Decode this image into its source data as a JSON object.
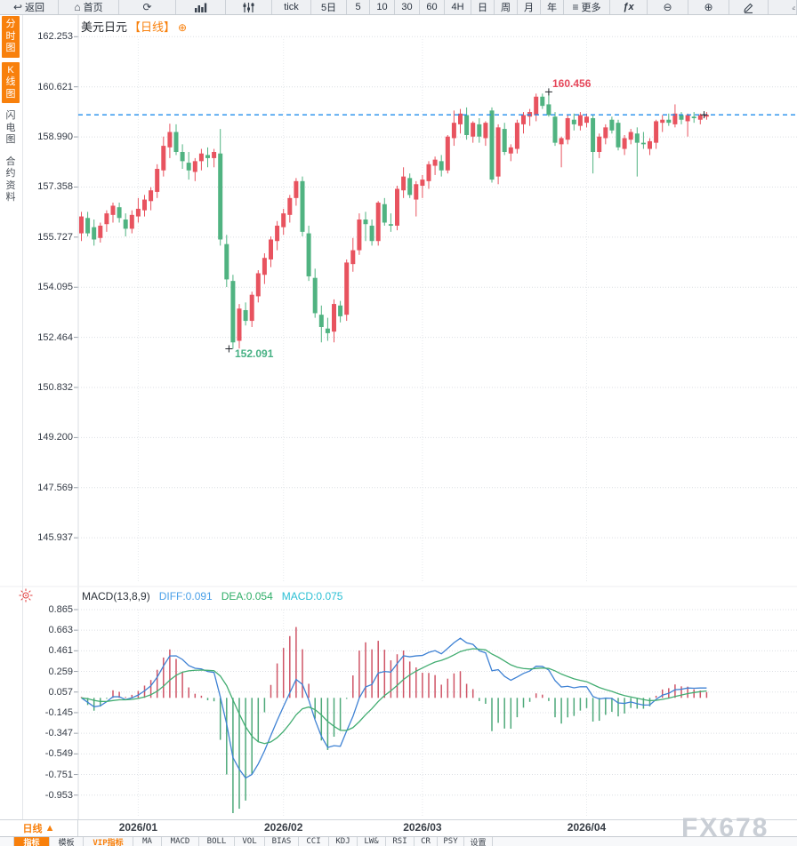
{
  "toolbar": {
    "items": [
      {
        "name": "back-button",
        "icon": "↩",
        "label": "返回"
      },
      {
        "name": "home-button",
        "icon": "⌂",
        "label": "首页"
      },
      {
        "name": "refresh-button",
        "icon": "⟳",
        "label": ""
      },
      {
        "name": "bar-chart-button",
        "svg": "bars",
        "label": ""
      },
      {
        "name": "kline-style-button",
        "svg": "sliders",
        "label": ""
      },
      {
        "name": "interval-tick-button",
        "label": "tick"
      },
      {
        "name": "interval-5d-button",
        "label": "5日"
      },
      {
        "name": "interval-5-button",
        "label": "5"
      },
      {
        "name": "interval-10-button",
        "label": "10"
      },
      {
        "name": "interval-30-button",
        "label": "30"
      },
      {
        "name": "interval-60-button",
        "label": "60"
      },
      {
        "name": "interval-4h-button",
        "label": "4H"
      },
      {
        "name": "interval-day-button",
        "label": "日"
      },
      {
        "name": "interval-week-button",
        "label": "周"
      },
      {
        "name": "interval-month-button",
        "label": "月"
      },
      {
        "name": "interval-year-button",
        "label": "年"
      },
      {
        "name": "more-button",
        "icon": "≡",
        "label": "更多"
      },
      {
        "name": "indicator-fx-button",
        "label": "ƒx"
      },
      {
        "name": "zoom-out-button",
        "icon": "⊖",
        "label": ""
      },
      {
        "name": "zoom-in-button",
        "icon": "⊕",
        "label": ""
      },
      {
        "name": "draw-button",
        "svg": "pen",
        "label": ""
      }
    ]
  },
  "sidebar": {
    "tabs": [
      {
        "name": "tab-time-chart",
        "label": "分时图",
        "active": true
      },
      {
        "name": "tab-kline-chart",
        "label": "K线图",
        "active": true
      },
      {
        "name": "tab-flash-chart",
        "label": "闪电图",
        "active": false
      },
      {
        "name": "tab-contract-info",
        "label": "合约资料",
        "active": false
      }
    ]
  },
  "chart": {
    "title": "美元日元",
    "timeframe": "【日线】",
    "add_icon": "⊕"
  },
  "macd_header": {
    "title": "MACD(13,8,9)",
    "diff": "DIFF:0.091",
    "dea": "DEA:0.054",
    "macd": "MACD:0.075"
  },
  "bottom": {
    "period_label": "日线",
    "period_arrow": "▲",
    "tabs": [
      {
        "name": "tab-indicators",
        "label": "指标",
        "selected": true
      },
      {
        "name": "tab-templates",
        "label": "模板"
      },
      {
        "name": "tab-vip-indicators",
        "label": "VIP指标",
        "vip": true
      },
      {
        "name": "tab-ma",
        "label": "MA"
      },
      {
        "name": "tab-macd",
        "label": "MACD"
      },
      {
        "name": "tab-boll",
        "label": "BOLL"
      },
      {
        "name": "tab-vol",
        "label": "VOL"
      },
      {
        "name": "tab-bias",
        "label": "BIAS"
      },
      {
        "name": "tab-cci",
        "label": "CCI"
      },
      {
        "name": "tab-kdj",
        "label": "KDJ"
      },
      {
        "name": "tab-lwr",
        "label": "LW&"
      },
      {
        "name": "tab-rsi",
        "label": "RSI"
      },
      {
        "name": "tab-cr",
        "label": "CR"
      },
      {
        "name": "tab-psy",
        "label": "PSY"
      },
      {
        "name": "tab-settings",
        "label": "设置"
      }
    ]
  },
  "watermark": "FX678",
  "colors": {
    "accent": "#f8800c",
    "candle_up": "#e8535f",
    "candle_down": "#50b381",
    "hist_up": "#cf5466",
    "hist_down": "#4ea97a",
    "diff_line": "#3f82d4",
    "dea_line": "#43ad72",
    "price_line": "#1f8ceb",
    "diff_label": "#4aa0e8",
    "dea_label": "#2fae68",
    "macd_label": "#2bbfd4",
    "high_anno": "#e5475a",
    "low_anno": "#47b184",
    "grid": "#dcdfe4"
  },
  "chart_data": {
    "type": "candlestick",
    "symbol": "美元日元",
    "period": "日线",
    "price_ticks": [
      162.253,
      160.621,
      158.99,
      157.358,
      155.727,
      154.095,
      152.464,
      150.832,
      149.2,
      147.569,
      145.937
    ],
    "x_labels": [
      "2026/01",
      "2026/02",
      "2026/03",
      "2026/04"
    ],
    "month_start_indices": [
      9,
      32,
      54,
      80
    ],
    "current_price": 159.71,
    "high_marker": {
      "index": 74,
      "price": 160.456,
      "label": "160.456"
    },
    "low_marker": {
      "index": 24,
      "price": 152.091,
      "label": "152.091"
    },
    "macd": {
      "params": [
        13,
        8,
        9
      ],
      "diff": 0.091,
      "dea": 0.054,
      "macd": 0.075,
      "ticks": [
        0.865,
        0.663,
        0.461,
        0.259,
        0.057,
        -0.145,
        -0.347,
        -0.549,
        -0.751,
        -0.953
      ]
    },
    "candles": [
      [
        155.85,
        156.55,
        155.6,
        156.4
      ],
      [
        156.35,
        156.55,
        155.75,
        155.85
      ],
      [
        156.05,
        156.3,
        155.45,
        155.65
      ],
      [
        155.7,
        156.2,
        155.55,
        156.1
      ],
      [
        156.15,
        156.6,
        155.9,
        156.5
      ],
      [
        156.45,
        156.85,
        156.2,
        156.75
      ],
      [
        156.7,
        156.85,
        156.2,
        156.35
      ],
      [
        156.3,
        156.5,
        155.75,
        156.0
      ],
      [
        156.0,
        156.6,
        155.85,
        156.45
      ],
      [
        156.4,
        157.0,
        156.2,
        156.65
      ],
      [
        156.6,
        157.1,
        156.4,
        156.95
      ],
      [
        156.9,
        157.35,
        156.6,
        157.25
      ],
      [
        157.2,
        158.1,
        157.0,
        157.95
      ],
      [
        157.9,
        159.0,
        157.7,
        158.7
      ],
      [
        158.65,
        159.42,
        158.3,
        159.15
      ],
      [
        159.15,
        159.4,
        158.4,
        158.5
      ],
      [
        158.5,
        158.75,
        157.95,
        158.2
      ],
      [
        158.15,
        158.5,
        157.6,
        157.9
      ],
      [
        157.85,
        158.3,
        157.55,
        158.2
      ],
      [
        158.2,
        158.6,
        157.9,
        158.45
      ],
      [
        158.4,
        158.65,
        158.0,
        158.3
      ],
      [
        158.3,
        158.6,
        158.0,
        158.5
      ],
      [
        158.45,
        159.25,
        155.45,
        155.65
      ],
      [
        155.5,
        155.8,
        154.1,
        154.35
      ],
      [
        154.3,
        154.5,
        152.09,
        152.3
      ],
      [
        152.35,
        153.55,
        152.1,
        153.4
      ],
      [
        153.35,
        153.6,
        152.85,
        153.0
      ],
      [
        153.0,
        153.95,
        152.8,
        153.85
      ],
      [
        153.8,
        154.65,
        153.6,
        154.55
      ],
      [
        154.5,
        155.2,
        154.2,
        155.05
      ],
      [
        155.0,
        155.75,
        154.75,
        155.65
      ],
      [
        155.6,
        156.25,
        155.3,
        156.1
      ],
      [
        156.05,
        156.65,
        155.8,
        156.5
      ],
      [
        156.45,
        157.1,
        156.2,
        157.0
      ],
      [
        157.0,
        157.65,
        156.75,
        157.55
      ],
      [
        157.55,
        157.7,
        155.75,
        155.9
      ],
      [
        155.85,
        156.1,
        154.3,
        154.45
      ],
      [
        154.4,
        154.7,
        153.1,
        153.25
      ],
      [
        153.2,
        153.5,
        152.3,
        152.8
      ],
      [
        152.75,
        153.1,
        152.35,
        152.6
      ],
      [
        152.65,
        153.7,
        152.3,
        153.55
      ],
      [
        153.5,
        153.65,
        152.95,
        153.15
      ],
      [
        153.2,
        155.0,
        153.0,
        154.9
      ],
      [
        154.85,
        155.7,
        154.6,
        155.3
      ],
      [
        155.3,
        156.5,
        155.15,
        156.3
      ],
      [
        156.3,
        156.55,
        155.6,
        156.15
      ],
      [
        156.1,
        156.3,
        155.45,
        155.6
      ],
      [
        155.6,
        156.9,
        155.45,
        156.85
      ],
      [
        156.8,
        157.0,
        156.1,
        156.2
      ],
      [
        156.15,
        156.5,
        155.9,
        156.1
      ],
      [
        156.1,
        157.4,
        155.95,
        157.3
      ],
      [
        157.25,
        158.0,
        157.0,
        157.7
      ],
      [
        157.65,
        157.8,
        157.0,
        157.1
      ],
      [
        156.95,
        157.55,
        156.4,
        157.45
      ],
      [
        157.4,
        157.75,
        157.0,
        157.6
      ],
      [
        157.55,
        158.2,
        157.3,
        158.1
      ],
      [
        158.05,
        158.35,
        157.75,
        158.25
      ],
      [
        158.2,
        158.4,
        157.7,
        157.9
      ],
      [
        157.9,
        159.05,
        157.8,
        159.0
      ],
      [
        158.95,
        159.85,
        158.7,
        159.45
      ],
      [
        159.4,
        159.9,
        159.1,
        159.75
      ],
      [
        159.7,
        159.95,
        158.9,
        159.05
      ],
      [
        159.0,
        159.5,
        158.8,
        159.45
      ],
      [
        159.4,
        159.6,
        158.8,
        159.0
      ],
      [
        158.95,
        159.5,
        158.7,
        159.45
      ],
      [
        159.85,
        159.95,
        157.5,
        157.6
      ],
      [
        157.7,
        159.4,
        157.45,
        159.3
      ],
      [
        159.25,
        159.45,
        158.4,
        158.5
      ],
      [
        158.45,
        158.75,
        158.2,
        158.65
      ],
      [
        158.6,
        159.55,
        158.45,
        159.45
      ],
      [
        159.4,
        159.8,
        159.1,
        159.7
      ],
      [
        159.65,
        159.9,
        159.35,
        159.8
      ],
      [
        159.7,
        160.4,
        159.5,
        160.3
      ],
      [
        160.3,
        160.4,
        159.9,
        160.0
      ],
      [
        160.05,
        160.456,
        159.65,
        159.7
      ],
      [
        159.65,
        159.8,
        158.7,
        158.8
      ],
      [
        158.75,
        159.0,
        158.0,
        158.95
      ],
      [
        158.9,
        159.7,
        158.75,
        159.6
      ],
      [
        159.55,
        159.75,
        159.2,
        159.4
      ],
      [
        159.35,
        159.8,
        159.2,
        159.7
      ],
      [
        159.45,
        159.75,
        159.3,
        159.65
      ],
      [
        159.6,
        159.7,
        157.8,
        158.5
      ],
      [
        158.5,
        159.1,
        158.3,
        159.0
      ],
      [
        158.95,
        159.4,
        158.75,
        159.3
      ],
      [
        159.55,
        159.65,
        159.1,
        159.2
      ],
      [
        159.45,
        159.55,
        158.55,
        158.65
      ],
      [
        158.6,
        159.05,
        158.4,
        158.95
      ],
      [
        158.9,
        159.25,
        158.75,
        159.15
      ],
      [
        159.1,
        159.3,
        157.7,
        158.8
      ],
      [
        158.8,
        159.15,
        158.6,
        158.75
      ],
      [
        158.6,
        158.95,
        158.4,
        158.85
      ],
      [
        158.8,
        159.55,
        158.6,
        159.5
      ],
      [
        159.45,
        159.7,
        159.15,
        159.55
      ],
      [
        159.55,
        159.75,
        159.35,
        159.45
      ],
      [
        159.4,
        160.05,
        159.3,
        159.75
      ],
      [
        159.7,
        159.8,
        159.4,
        159.55
      ],
      [
        159.5,
        159.75,
        159.0,
        159.7
      ],
      [
        159.65,
        159.8,
        159.45,
        159.6
      ],
      [
        159.55,
        159.75,
        159.4,
        159.7
      ],
      [
        159.65,
        159.8,
        159.55,
        159.71
      ]
    ]
  }
}
